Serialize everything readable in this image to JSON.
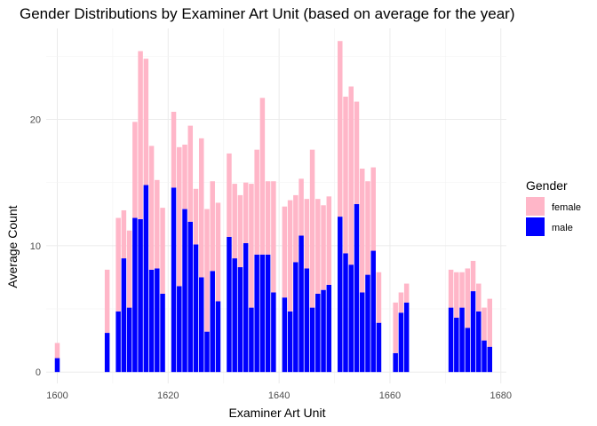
{
  "chart_data": {
    "type": "bar",
    "stacked": true,
    "title": "Gender Distributions by Examiner Art Unit (based on average for the year)",
    "xlabel": "Examiner Art Unit",
    "ylabel": "Average Count",
    "x_ticks": [
      1600,
      1620,
      1640,
      1660,
      1680
    ],
    "y_ticks": [
      0,
      10,
      20
    ],
    "xlim": [
      1598.0,
      1681.0
    ],
    "ylim": [
      -0.9,
      27.2
    ],
    "grid": true,
    "legend": {
      "title": "Gender",
      "placement": "right",
      "entries": [
        "female",
        "male"
      ]
    },
    "colors": {
      "female": "#ffb6c8",
      "male": "#0000ff"
    },
    "series_order": [
      "male",
      "female"
    ],
    "x": [
      1600,
      1609,
      1611,
      1612,
      1613,
      1614,
      1615,
      1616,
      1617,
      1618,
      1619,
      1621,
      1622,
      1623,
      1624,
      1625,
      1626,
      1627,
      1628,
      1629,
      1631,
      1632,
      1633,
      1634,
      1635,
      1636,
      1637,
      1638,
      1639,
      1641,
      1642,
      1643,
      1644,
      1645,
      1646,
      1647,
      1648,
      1649,
      1651,
      1652,
      1653,
      1654,
      1655,
      1656,
      1657,
      1658,
      1661,
      1662,
      1663,
      1671,
      1672,
      1673,
      1674,
      1675,
      1676,
      1677,
      1678
    ],
    "series": [
      {
        "name": "male",
        "values": [
          1.1,
          3.1,
          4.8,
          9.0,
          5.1,
          12.2,
          12.1,
          14.8,
          8.1,
          8.2,
          6.2,
          14.6,
          6.8,
          12.9,
          11.9,
          10.1,
          7.5,
          3.2,
          8.0,
          5.6,
          10.7,
          9.0,
          8.3,
          10.2,
          5.1,
          9.3,
          9.3,
          9.3,
          6.3,
          5.9,
          4.8,
          8.7,
          10.8,
          8.2,
          5.1,
          6.2,
          6.5,
          6.9,
          12.3,
          9.4,
          8.5,
          13.3,
          6.3,
          7.7,
          9.6,
          3.9,
          1.5,
          4.7,
          5.5,
          5.1,
          4.3,
          5.1,
          3.5,
          6.4,
          4.8,
          2.5,
          2.0
        ]
      },
      {
        "name": "female",
        "values": [
          1.2,
          5.0,
          7.4,
          3.8,
          6.1,
          7.6,
          13.3,
          10.0,
          9.8,
          7.0,
          6.8,
          6.0,
          11.0,
          5.1,
          7.6,
          4.4,
          11.0,
          9.7,
          7.1,
          7.8,
          6.6,
          5.9,
          5.7,
          4.8,
          9.8,
          8.3,
          12.4,
          5.8,
          8.8,
          7.2,
          8.8,
          5.3,
          4.5,
          5.5,
          12.5,
          7.5,
          6.7,
          7.0,
          13.9,
          12.4,
          14.1,
          8.1,
          9.8,
          7.4,
          6.6,
          4.0,
          4.0,
          1.6,
          1.5,
          3.0,
          3.6,
          2.8,
          4.7,
          2.4,
          2.2,
          2.6,
          3.8
        ]
      }
    ]
  }
}
